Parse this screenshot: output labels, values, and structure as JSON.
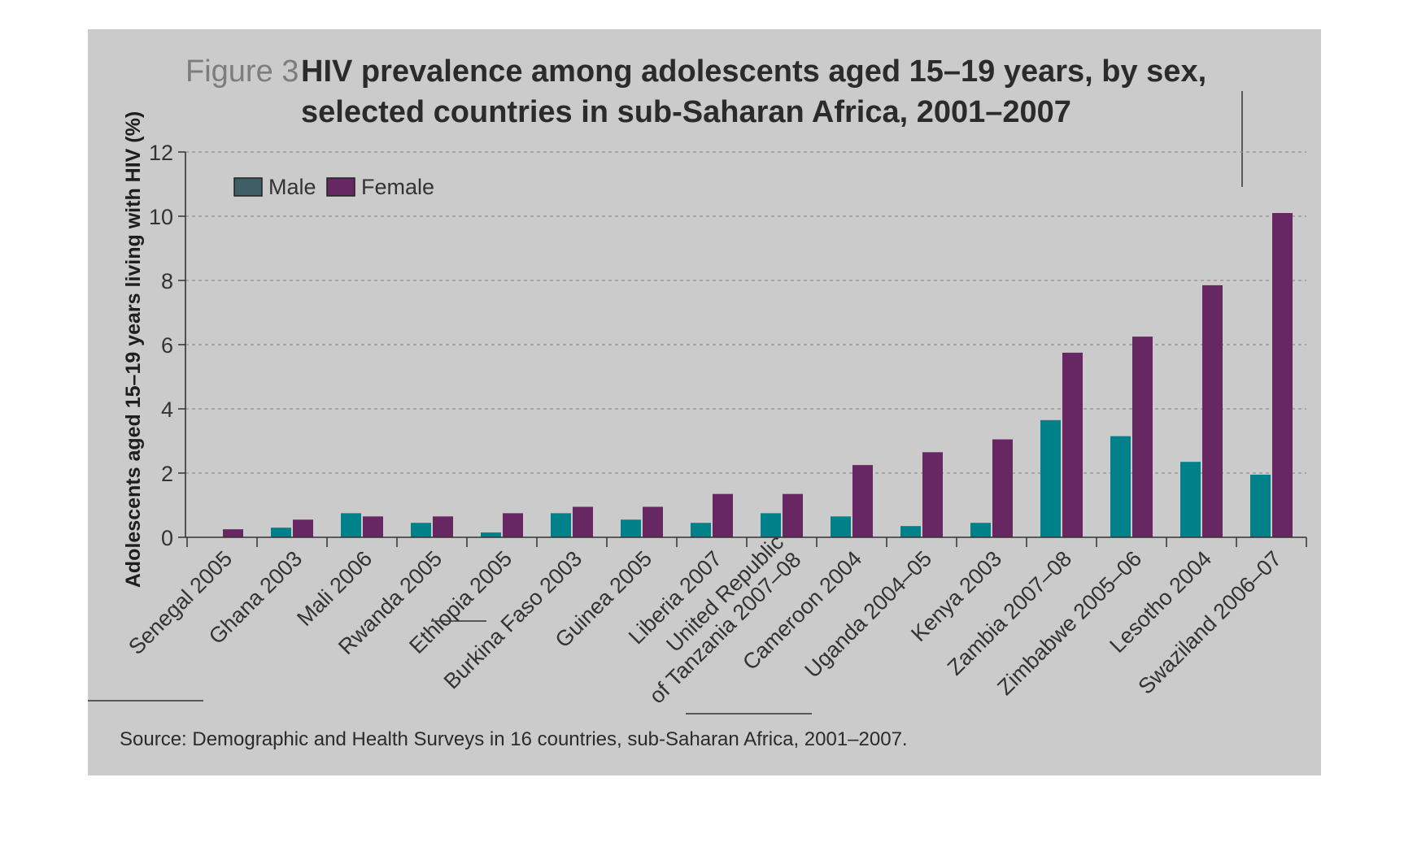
{
  "figure": {
    "label": "Figure 3",
    "title_line1": "HIV prevalence among adolescents aged 15–19 years, by sex,",
    "title_line2": "selected countries in sub-Saharan Africa, 2001–2007",
    "source": "Source: Demographic and Health Surveys in 16 countries, sub-Saharan Africa, 2001–2007."
  },
  "colors": {
    "panel": "#cbcbcb",
    "male": "#00818a",
    "female": "#672762",
    "legend_male": "#3f5f66",
    "axis": "#333333",
    "grid": "#8e8e8e"
  },
  "chart_data": {
    "type": "bar",
    "title": "HIV prevalence among adolescents aged 15–19 years, by sex, selected countries in sub-Saharan Africa, 2001–2007",
    "ylabel": "Adolescents aged 15–19 years living with HIV (%)",
    "xlabel": "",
    "ylim": [
      0,
      12
    ],
    "yticks": [
      0,
      2,
      4,
      6,
      8,
      10,
      12
    ],
    "grid": true,
    "legend_position": "top-left",
    "categories": [
      [
        "Senegal 2005"
      ],
      [
        "Ghana 2003"
      ],
      [
        "Mali 2006"
      ],
      [
        "Rwanda 2005"
      ],
      [
        "Ethiopia 2005"
      ],
      [
        "Burkina Faso 2003"
      ],
      [
        "Guinea 2005"
      ],
      [
        "Liberia 2007"
      ],
      [
        "United Republic",
        "of Tanzania 2007–08"
      ],
      [
        "Cameroon 2004"
      ],
      [
        "Uganda 2004–05"
      ],
      [
        "Kenya 2003"
      ],
      [
        "Zambia 2007–08"
      ],
      [
        "Zimbabwe 2005–06"
      ],
      [
        "Lesotho 2004"
      ],
      [
        "Swaziland 2006–07"
      ]
    ],
    "series": [
      {
        "name": "Male",
        "color": "#00818a",
        "values": [
          0.0,
          0.3,
          0.75,
          0.45,
          0.15,
          0.75,
          0.55,
          0.45,
          0.75,
          0.65,
          0.35,
          0.45,
          3.65,
          3.15,
          2.35,
          1.95
        ]
      },
      {
        "name": "Female",
        "color": "#672762",
        "values": [
          0.25,
          0.55,
          0.65,
          0.65,
          0.75,
          0.95,
          0.95,
          1.35,
          1.35,
          2.25,
          2.65,
          3.05,
          5.75,
          6.25,
          7.85,
          10.1
        ]
      }
    ]
  }
}
